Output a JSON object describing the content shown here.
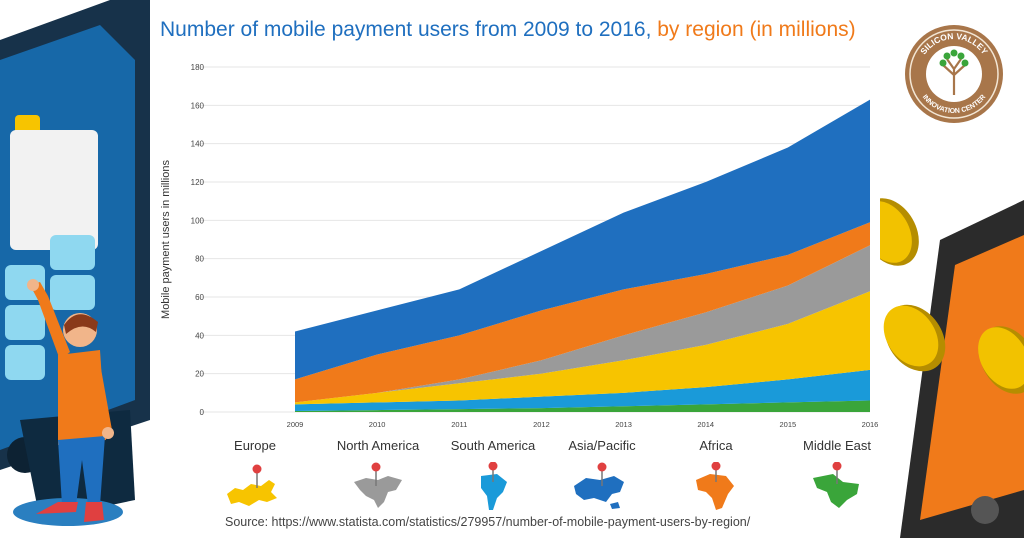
{
  "title": {
    "part1": "Number of mobile payment users from 2009 to 2016,",
    "part2": " by region (in millions)"
  },
  "logo": {
    "text_top": "SILICON VALLEY",
    "text_bottom": "INNOVATION CENTER",
    "color": "#a8764a"
  },
  "regions": [
    {
      "label": "Europe",
      "color": "#f7c400"
    },
    {
      "label": "North America",
      "color": "#9a9a9a"
    },
    {
      "label": "South America",
      "color": "#1a9ad9"
    },
    {
      "label": "Asia/Pacific",
      "color": "#1f6fbf"
    },
    {
      "label": "Africa",
      "color": "#f07a1a"
    },
    {
      "label": "Middle East",
      "color": "#3aa53a"
    }
  ],
  "source": "Source: https://www.statista.com/statistics/279957/number-of-mobile-payment-users-by-region/",
  "chart_data": {
    "type": "area",
    "stacked": true,
    "ylabel": "Mobile payment users in millions",
    "ylim": [
      0,
      180
    ],
    "yticks": [
      0,
      20,
      40,
      60,
      80,
      100,
      120,
      140,
      160,
      180
    ],
    "x": [
      "2009",
      "2010",
      "2011",
      "2012",
      "2013",
      "2014",
      "2015",
      "2016"
    ],
    "grid": true,
    "series": [
      {
        "color": "#3aa53a",
        "values": [
          0.5,
          1,
          1.5,
          2,
          3,
          4,
          5,
          6
        ]
      },
      {
        "color": "#1a9ad9",
        "values": [
          3.5,
          4,
          4.5,
          6,
          7,
          9,
          12,
          16
        ]
      },
      {
        "color": "#f7c400",
        "values": [
          1,
          5,
          9,
          12,
          17,
          22,
          29,
          41
        ]
      },
      {
        "color": "#9a9a9a",
        "values": [
          0,
          0,
          2,
          7,
          13,
          17,
          20,
          24
        ]
      },
      {
        "color": "#f07a1a",
        "values": [
          12,
          20,
          23,
          26,
          24,
          20,
          16,
          12
        ]
      },
      {
        "color": "#1f6fbf",
        "values": [
          25,
          23,
          24,
          31,
          40,
          48,
          56,
          64
        ]
      }
    ]
  }
}
